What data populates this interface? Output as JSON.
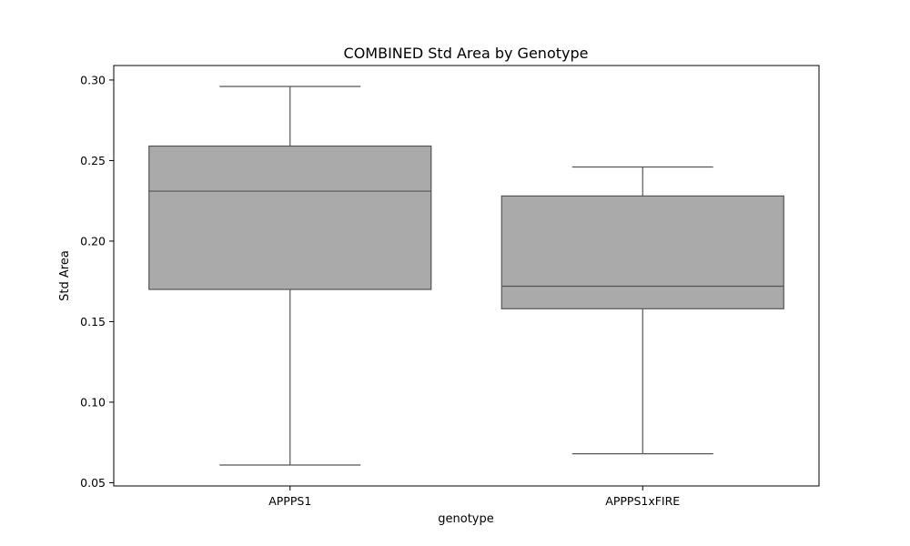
{
  "chart_data": {
    "type": "boxplot",
    "title": "COMBINED Std Area by Genotype",
    "xlabel": "genotype",
    "ylabel": "Std Area",
    "ylim": [
      0.048,
      0.309
    ],
    "yticks": [
      "0.05",
      "0.10",
      "0.15",
      "0.20",
      "0.25",
      "0.30"
    ],
    "grid": false,
    "box_color": "#aaaaaa",
    "line_color": "#555555",
    "categories": [
      "APPPS1",
      "APPPS1xFIRE"
    ],
    "boxes": [
      {
        "category": "APPPS1",
        "whisker_low": 0.061,
        "q1": 0.17,
        "median": 0.231,
        "q3": 0.259,
        "whisker_high": 0.296
      },
      {
        "category": "APPPS1xFIRE",
        "whisker_low": 0.068,
        "q1": 0.158,
        "median": 0.172,
        "q3": 0.228,
        "whisker_high": 0.246
      }
    ]
  }
}
